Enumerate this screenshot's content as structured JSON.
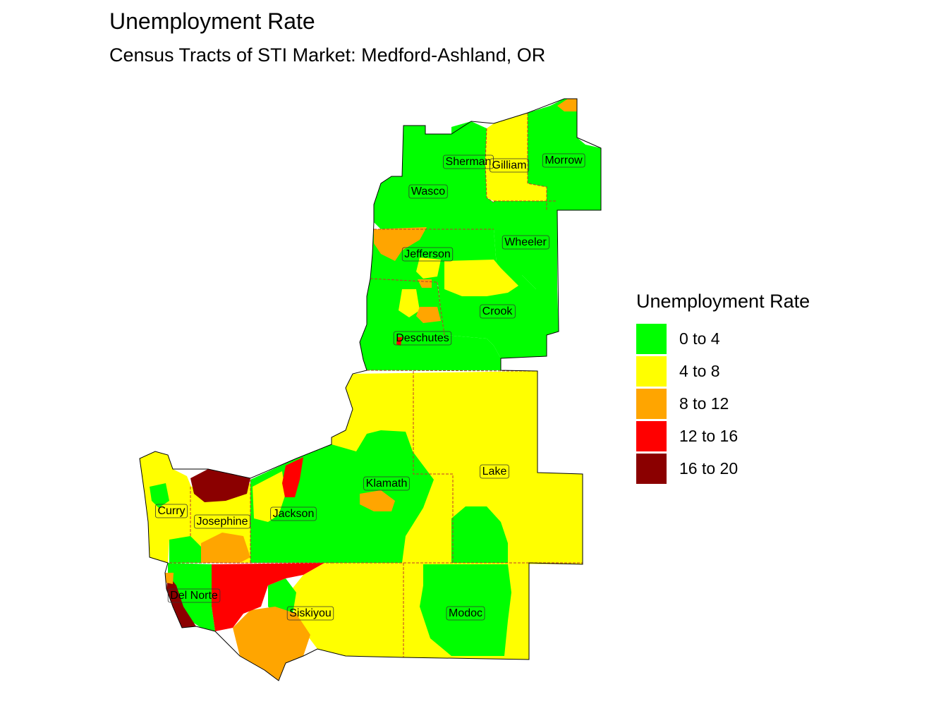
{
  "title": "Unemployment Rate",
  "subtitle": "Census Tracts of STI Market: Medford-Ashland, OR",
  "legend": {
    "title": "Unemployment Rate",
    "items": [
      {
        "label": "0 to 4",
        "color": "#00FF00"
      },
      {
        "label": "4 to 8",
        "color": "#FFFF00"
      },
      {
        "label": "8 to 12",
        "color": "#FFA500"
      },
      {
        "label": "12 to 16",
        "color": "#FF0000"
      },
      {
        "label": "16 to 20",
        "color": "#8B0000"
      }
    ]
  },
  "counties": [
    {
      "name": "Sherman"
    },
    {
      "name": "Gilliam"
    },
    {
      "name": "Morrow"
    },
    {
      "name": "Wasco"
    },
    {
      "name": "Wheeler"
    },
    {
      "name": "Jefferson"
    },
    {
      "name": "Crook"
    },
    {
      "name": "Deschutes"
    },
    {
      "name": "Klamath"
    },
    {
      "name": "Lake"
    },
    {
      "name": "Curry"
    },
    {
      "name": "Josephine"
    },
    {
      "name": "Jackson"
    },
    {
      "name": "Del Norte"
    },
    {
      "name": "Siskiyou"
    },
    {
      "name": "Modoc"
    }
  ]
}
